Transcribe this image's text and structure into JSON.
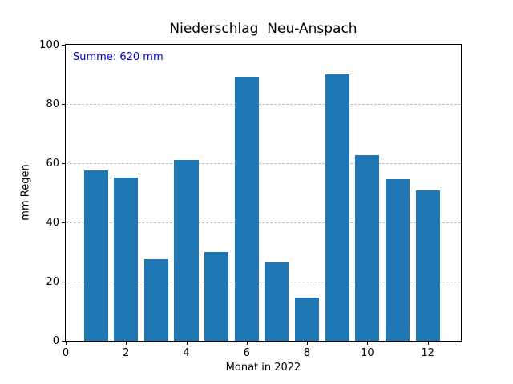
{
  "chart_data": {
    "type": "bar",
    "title": "Niederschlag  Neu-Anspach",
    "xlabel": "Monat in 2022",
    "ylabel": "mm Regen",
    "annotation": "Summe: 620 mm",
    "annotation_sum_mm": 620,
    "categories": [
      1,
      2,
      3,
      4,
      5,
      6,
      7,
      8,
      9,
      10,
      11,
      12
    ],
    "values": [
      57.5,
      55.2,
      27.7,
      61.0,
      30.1,
      89.2,
      26.6,
      14.7,
      90.0,
      62.7,
      54.5,
      50.8
    ],
    "xlim": [
      0,
      13.1
    ],
    "ylim": [
      0,
      100
    ],
    "xticks": [
      0,
      2,
      4,
      6,
      8,
      10,
      12
    ],
    "yticks": [
      0,
      20,
      40,
      60,
      80,
      100
    ],
    "grid": "horizontal-dashed",
    "legend": "none",
    "bar_width_units": 0.8,
    "colors": {
      "bar": "#1f77b4",
      "grid": "#bfbfbf",
      "annotation_text": "#0000cd",
      "axes_text": "#000000",
      "spine": "#000000",
      "background": "#ffffff"
    }
  }
}
